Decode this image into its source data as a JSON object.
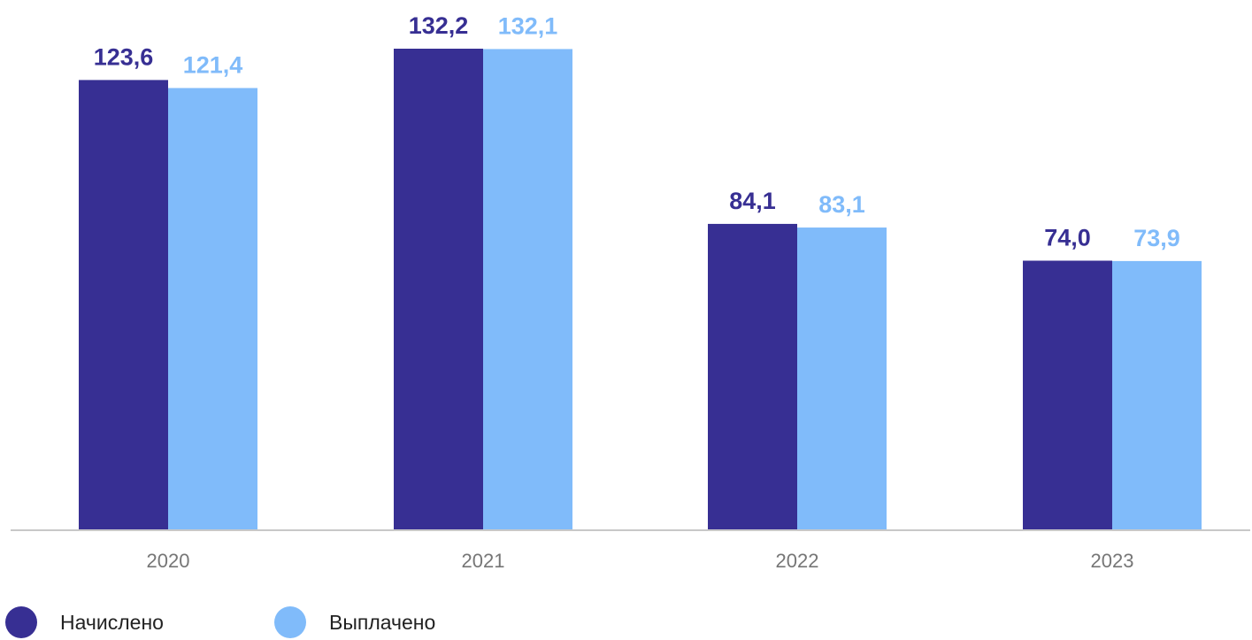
{
  "chart_data": {
    "type": "bar",
    "categories": [
      "2020",
      "2021",
      "2022",
      "2023"
    ],
    "series": [
      {
        "name": "Начислено",
        "values": [
          123.6,
          132.2,
          84.1,
          74.0
        ],
        "labels": [
          "123,6",
          "132,2",
          "84,1",
          "74,0"
        ],
        "color": "#372F93"
      },
      {
        "name": "Выплачено",
        "values": [
          121.4,
          132.1,
          83.1,
          73.9
        ],
        "labels": [
          "121,4",
          "132,1",
          "83,1",
          "73,9"
        ],
        "color": "#80BBFA"
      }
    ],
    "title": "",
    "xlabel": "",
    "ylabel": "",
    "ylim": [
      0,
      132.2
    ],
    "grid": false,
    "legend": "bottom-left"
  },
  "axis_color": "#C8C8C8",
  "tick_color": "#767676"
}
